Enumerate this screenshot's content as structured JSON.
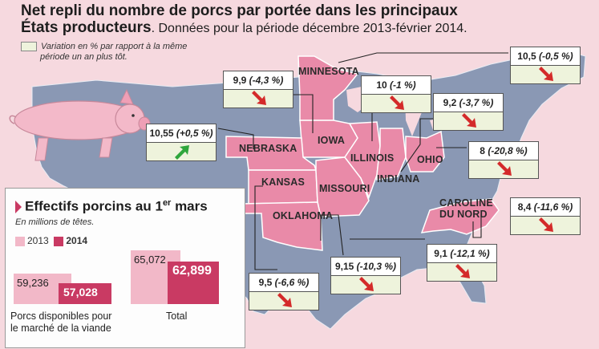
{
  "title": "Net repli du nombre de porcs par portée dans les principaux",
  "title_line2": "États producteurs",
  "subtitle": ". Données pour la période décembre 2013-février 2014.",
  "legend": {
    "line1": "Variation en % par rapport à la même",
    "line2": "période un an plus tôt."
  },
  "states": [
    {
      "id": "minnesota",
      "label": "MINNESOTA",
      "value": "10,5",
      "change": "(-0,5 %)",
      "trend": "down"
    },
    {
      "id": "iowa",
      "label": "IOWA",
      "value": "9,9",
      "change": "(-4,3 %)",
      "trend": "down"
    },
    {
      "id": "illinois",
      "label": "ILLINOIS",
      "value": "10",
      "change": "(-1 %)",
      "trend": "down"
    },
    {
      "id": "indiana",
      "label": "INDIANA",
      "value": "9,2",
      "change": "(-3,7 %)",
      "trend": "down"
    },
    {
      "id": "nebraska",
      "label": "NEBRASKA",
      "value": "10,55",
      "change": "(+0,5 %)",
      "trend": "up"
    },
    {
      "id": "ohio",
      "label": "OHIO",
      "value": "8",
      "change": "(-20,8 %)",
      "trend": "down"
    },
    {
      "id": "caroline",
      "label": "CAROLINE",
      "label2": "DU NORD",
      "value": "8,4",
      "change": "(-11,6 %)",
      "trend": "down"
    },
    {
      "id": "oklahoma",
      "label": "OKLAHOMA",
      "value": "9,1",
      "change": "(-12,1 %)",
      "trend": "down"
    },
    {
      "id": "missouri",
      "label": "MISSOURI",
      "value": "9,15",
      "change": "(-10,3 %)",
      "trend": "down"
    },
    {
      "id": "kansas",
      "label": "KANSAS",
      "value": "9,5",
      "change": "(-6,6 %)",
      "trend": "down"
    }
  ],
  "colors": {
    "down": "#d42a2a",
    "up": "#2ea63c",
    "highlight": "#e98aa8",
    "land": "#8a98b4",
    "sea": "#f6d9df",
    "bar2013": "#f2b8c8",
    "bar2014": "#c93a63"
  },
  "panel": {
    "title": "Effectifs porcins au 1",
    "title_sup": "er",
    "title_end": " mars",
    "subtitle": "En millions de têtes.",
    "legend_2013": "2013",
    "legend_2014": "2014",
    "groups": [
      {
        "label_line1": "Porcs disponibles pour",
        "label_line2": "le marché de la viande",
        "v2013": 59.236,
        "v2014": 57.028,
        "t2013": "59,236",
        "t2014": "57,028"
      },
      {
        "label_line1": "Total",
        "label_line2": "",
        "v2013": 65.072,
        "v2014": 62.899,
        "t2013": "65,072",
        "t2014": "62,899"
      }
    ]
  }
}
